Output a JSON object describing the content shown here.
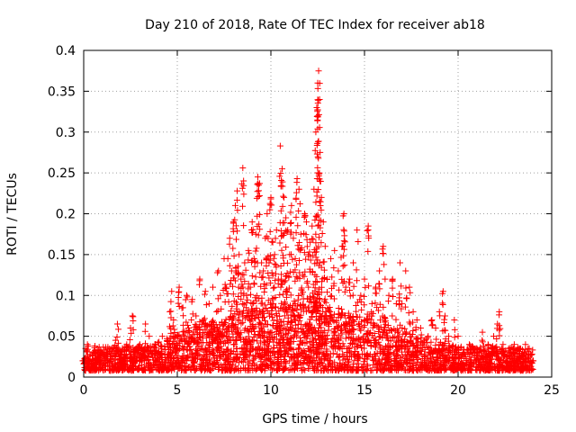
{
  "chart_data": {
    "type": "scatter",
    "title": "Day 210 of 2018, Rate Of TEC Index for receiver ab18",
    "xlabel": "GPS time / hours",
    "ylabel": "ROTI / TECUs",
    "xlim": [
      0,
      25
    ],
    "ylim": [
      0,
      0.4
    ],
    "x_ticks": [
      "0",
      "5",
      "10",
      "15",
      "20",
      "25"
    ],
    "y_ticks": [
      "0",
      "0.05",
      "0.1",
      "0.15",
      "0.2",
      "0.25",
      "0.3",
      "0.35",
      "0.4"
    ],
    "grid": true,
    "marker": "+",
    "series": [
      {
        "name": "ROTI",
        "color": "#ff0000",
        "points": [
          [
            0.0,
            0.02
          ],
          [
            0.1,
            0.035
          ],
          [
            0.2,
            0.04
          ],
          [
            0.3,
            0.015
          ],
          [
            0.5,
            0.03
          ],
          [
            0.6,
            0.038
          ],
          [
            0.8,
            0.02
          ],
          [
            1.0,
            0.03
          ],
          [
            1.2,
            0.025
          ],
          [
            1.5,
            0.035
          ],
          [
            1.7,
            0.045
          ],
          [
            1.8,
            0.065
          ],
          [
            2.0,
            0.03
          ],
          [
            2.3,
            0.04
          ],
          [
            2.5,
            0.06
          ],
          [
            2.6,
            0.075
          ],
          [
            2.8,
            0.035
          ],
          [
            3.0,
            0.04
          ],
          [
            3.3,
            0.065
          ],
          [
            3.5,
            0.05
          ],
          [
            3.8,
            0.04
          ],
          [
            4.0,
            0.03
          ],
          [
            4.2,
            0.05
          ],
          [
            4.5,
            0.045
          ],
          [
            4.6,
            0.08
          ],
          [
            4.7,
            0.105
          ],
          [
            4.8,
            0.07
          ],
          [
            5.0,
            0.05
          ],
          [
            5.1,
            0.11
          ],
          [
            5.3,
            0.085
          ],
          [
            5.5,
            0.1
          ],
          [
            5.6,
            0.06
          ],
          [
            5.8,
            0.095
          ],
          [
            6.0,
            0.075
          ],
          [
            6.2,
            0.12
          ],
          [
            6.4,
            0.07
          ],
          [
            6.5,
            0.105
          ],
          [
            6.7,
            0.09
          ],
          [
            6.9,
            0.11
          ],
          [
            7.1,
            0.08
          ],
          [
            7.2,
            0.13
          ],
          [
            7.3,
            0.1
          ],
          [
            7.5,
            0.145
          ],
          [
            7.6,
            0.11
          ],
          [
            7.7,
            0.145
          ],
          [
            7.8,
            0.17
          ],
          [
            7.9,
            0.13
          ],
          [
            8.0,
            0.19
          ],
          [
            8.1,
            0.21
          ],
          [
            8.2,
            0.228
          ],
          [
            8.3,
            0.15
          ],
          [
            8.4,
            0.12
          ],
          [
            8.5,
            0.256
          ],
          [
            8.6,
            0.14
          ],
          [
            8.7,
            0.1
          ],
          [
            8.8,
            0.155
          ],
          [
            8.9,
            0.11
          ],
          [
            9.0,
            0.19
          ],
          [
            9.1,
            0.145
          ],
          [
            9.2,
            0.175
          ],
          [
            9.3,
            0.245
          ],
          [
            9.4,
            0.237
          ],
          [
            9.5,
            0.14
          ],
          [
            9.6,
            0.13
          ],
          [
            9.7,
            0.17
          ],
          [
            9.8,
            0.2
          ],
          [
            9.9,
            0.14
          ],
          [
            10.0,
            0.22
          ],
          [
            10.1,
            0.165
          ],
          [
            10.2,
            0.15
          ],
          [
            10.3,
            0.18
          ],
          [
            10.4,
            0.12
          ],
          [
            10.5,
            0.283
          ],
          [
            10.6,
            0.255
          ],
          [
            10.7,
            0.22
          ],
          [
            10.8,
            0.195
          ],
          [
            10.9,
            0.18
          ],
          [
            11.0,
            0.15
          ],
          [
            11.1,
            0.21
          ],
          [
            11.2,
            0.17
          ],
          [
            11.3,
            0.145
          ],
          [
            11.4,
            0.243
          ],
          [
            11.5,
            0.23
          ],
          [
            11.6,
            0.175
          ],
          [
            11.7,
            0.125
          ],
          [
            11.8,
            0.2
          ],
          [
            11.9,
            0.19
          ],
          [
            12.0,
            0.15
          ],
          [
            12.1,
            0.165
          ],
          [
            12.2,
            0.185
          ],
          [
            12.3,
            0.23
          ],
          [
            12.4,
            0.3
          ],
          [
            12.45,
            0.33
          ],
          [
            12.5,
            0.36
          ],
          [
            12.55,
            0.375
          ],
          [
            12.6,
            0.34
          ],
          [
            12.7,
            0.22
          ],
          [
            12.8,
            0.19
          ],
          [
            12.9,
            0.16
          ],
          [
            13.0,
            0.12
          ],
          [
            13.2,
            0.145
          ],
          [
            13.4,
            0.155
          ],
          [
            13.6,
            0.13
          ],
          [
            13.8,
            0.16
          ],
          [
            13.9,
            0.2
          ],
          [
            14.0,
            0.11
          ],
          [
            14.2,
            0.12
          ],
          [
            14.4,
            0.14
          ],
          [
            14.6,
            0.18
          ],
          [
            14.8,
            0.1
          ],
          [
            15.0,
            0.12
          ],
          [
            15.2,
            0.185
          ],
          [
            15.4,
            0.09
          ],
          [
            15.6,
            0.11
          ],
          [
            15.8,
            0.13
          ],
          [
            16.0,
            0.16
          ],
          [
            16.1,
            0.12
          ],
          [
            16.3,
            0.1
          ],
          [
            16.5,
            0.12
          ],
          [
            16.7,
            0.09
          ],
          [
            16.9,
            0.14
          ],
          [
            17.0,
            0.09
          ],
          [
            17.2,
            0.13
          ],
          [
            17.4,
            0.11
          ],
          [
            17.6,
            0.08
          ],
          [
            17.8,
            0.07
          ],
          [
            18.0,
            0.06
          ],
          [
            18.2,
            0.045
          ],
          [
            18.4,
            0.05
          ],
          [
            18.6,
            0.07
          ],
          [
            18.8,
            0.06
          ],
          [
            19.0,
            0.08
          ],
          [
            19.2,
            0.105
          ],
          [
            19.3,
            0.075
          ],
          [
            19.5,
            0.05
          ],
          [
            19.8,
            0.07
          ],
          [
            20.0,
            0.05
          ],
          [
            20.3,
            0.03
          ],
          [
            20.6,
            0.04
          ],
          [
            21.0,
            0.035
          ],
          [
            21.3,
            0.055
          ],
          [
            21.6,
            0.04
          ],
          [
            21.9,
            0.05
          ],
          [
            22.1,
            0.065
          ],
          [
            22.2,
            0.08
          ],
          [
            22.4,
            0.04
          ],
          [
            22.7,
            0.035
          ],
          [
            23.0,
            0.04
          ],
          [
            23.3,
            0.035
          ],
          [
            23.6,
            0.04
          ],
          [
            23.8,
            0.035
          ],
          [
            24.0,
            0.02
          ]
        ]
      }
    ],
    "envelope": [
      [
        0,
        0.028
      ],
      [
        2,
        0.03
      ],
      [
        4,
        0.035
      ],
      [
        5,
        0.045
      ],
      [
        6,
        0.055
      ],
      [
        7,
        0.06
      ],
      [
        8,
        0.07
      ],
      [
        9,
        0.08
      ],
      [
        10,
        0.085
      ],
      [
        11,
        0.08
      ],
      [
        12,
        0.09
      ],
      [
        13,
        0.075
      ],
      [
        14,
        0.07
      ],
      [
        15,
        0.065
      ],
      [
        16,
        0.06
      ],
      [
        17,
        0.05
      ],
      [
        18,
        0.04
      ],
      [
        19,
        0.035
      ],
      [
        20,
        0.03
      ],
      [
        22,
        0.03
      ],
      [
        24,
        0.028
      ]
    ]
  }
}
